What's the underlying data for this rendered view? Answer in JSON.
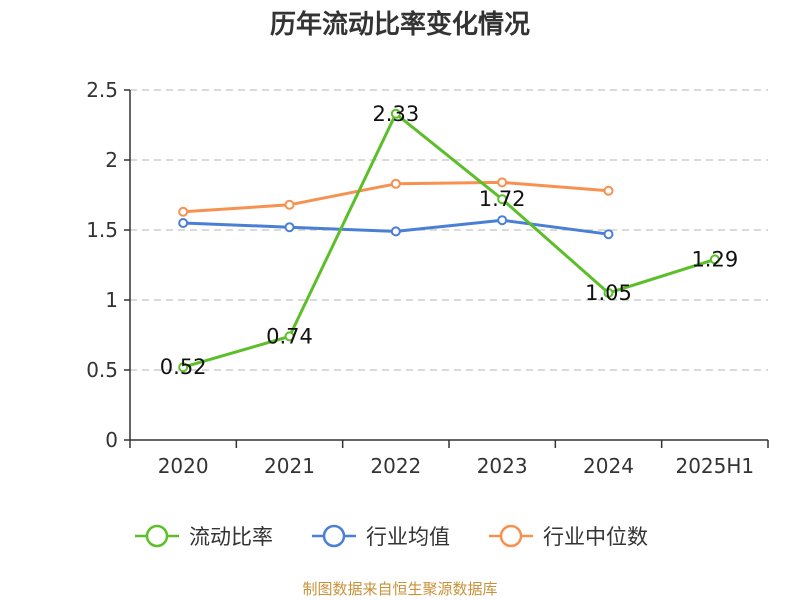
{
  "chart_data": {
    "type": "line",
    "title": "历年流动比率变化情况",
    "categories": [
      "2020",
      "2021",
      "2022",
      "2023",
      "2024",
      "2025H1"
    ],
    "ylim": [
      0,
      2.5
    ],
    "yticks": [
      "0",
      "0.5",
      "1",
      "1.5",
      "2",
      "2.5"
    ],
    "grid": true,
    "legend_position": "bottom",
    "series": [
      {
        "name": "流动比率",
        "color": "#5cbf2a",
        "values": [
          0.52,
          0.74,
          2.33,
          1.72,
          1.05,
          1.29
        ],
        "labels": [
          "0.52",
          "0.74",
          "2.33",
          "1.72",
          "1.05",
          "1.29"
        ]
      },
      {
        "name": "行业均值",
        "color": "#4a7fd6",
        "values": [
          1.55,
          1.52,
          1.49,
          1.57,
          1.47,
          null
        ]
      },
      {
        "name": "行业中位数",
        "color": "#f79150",
        "values": [
          1.63,
          1.68,
          1.83,
          1.84,
          1.78,
          null
        ]
      }
    ]
  },
  "source_note": "制图数据来自恒生聚源数据库"
}
